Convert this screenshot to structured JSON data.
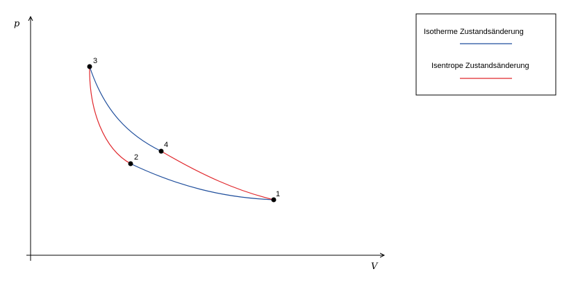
{
  "diagram": {
    "axes": {
      "x_label": "V",
      "y_label": "p"
    },
    "points": [
      {
        "id": "1",
        "label": "1"
      },
      {
        "id": "2",
        "label": "2"
      },
      {
        "id": "3",
        "label": "3"
      },
      {
        "id": "4",
        "label": "4"
      }
    ],
    "curves": [
      {
        "from": "3",
        "to": "4",
        "kind": "isotherm"
      },
      {
        "from": "2",
        "to": "1",
        "kind": "isotherm"
      },
      {
        "from": "3",
        "to": "2",
        "kind": "isentrope"
      },
      {
        "from": "4",
        "to": "1",
        "kind": "isentrope"
      }
    ],
    "legend": {
      "isotherm": {
        "label": "Isotherme Zustandsänderung",
        "color": "#1f4e9c"
      },
      "isentrope": {
        "label": "Isentrope Zustandsänderung",
        "color": "#e0262b"
      }
    }
  }
}
